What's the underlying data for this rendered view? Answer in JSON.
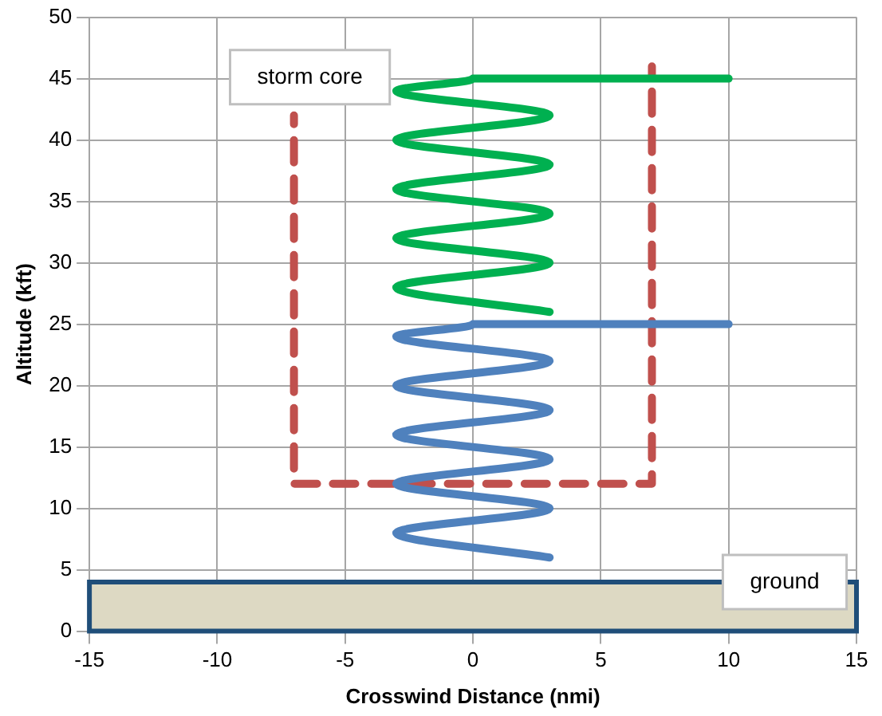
{
  "chart_data": {
    "type": "line",
    "xlabel": "Crosswind Distance (nmi)",
    "ylabel": "Altitude (kft)",
    "xlim": [
      -15,
      15
    ],
    "xticks": [
      -15,
      -10,
      -5,
      0,
      5,
      10,
      15
    ],
    "ylim": [
      0,
      50
    ],
    "yticks": [
      0,
      5,
      10,
      15,
      20,
      25,
      30,
      35,
      40,
      45,
      50
    ],
    "grid": true,
    "legend": false,
    "marker": "none",
    "series": [
      {
        "color": "#4f81bd",
        "line_style": "solid",
        "x": [
          3,
          -3,
          3,
          -3,
          3,
          -3,
          3,
          -3,
          3,
          -3,
          0,
          10
        ],
        "values": [
          6,
          8,
          10,
          12,
          14,
          16,
          18,
          20,
          22,
          24,
          25,
          25
        ]
      },
      {
        "color": "#00b050",
        "line_style": "solid",
        "x": [
          3,
          -3,
          3,
          -3,
          3,
          -3,
          3,
          -3,
          3,
          -3,
          0,
          10
        ],
        "values": [
          26,
          28,
          30,
          32,
          34,
          36,
          38,
          40,
          42,
          44,
          45,
          45
        ]
      },
      {
        "name": "storm core",
        "color": "#c0504d",
        "line_style": "dashed",
        "x": [
          -7,
          -7,
          7,
          7
        ],
        "values": [
          42,
          12,
          12,
          46
        ]
      }
    ],
    "bands": [
      {
        "axis": "y",
        "from": 0,
        "to": 4,
        "label": "ground",
        "color": "#ddd9c3"
      }
    ]
  }
}
